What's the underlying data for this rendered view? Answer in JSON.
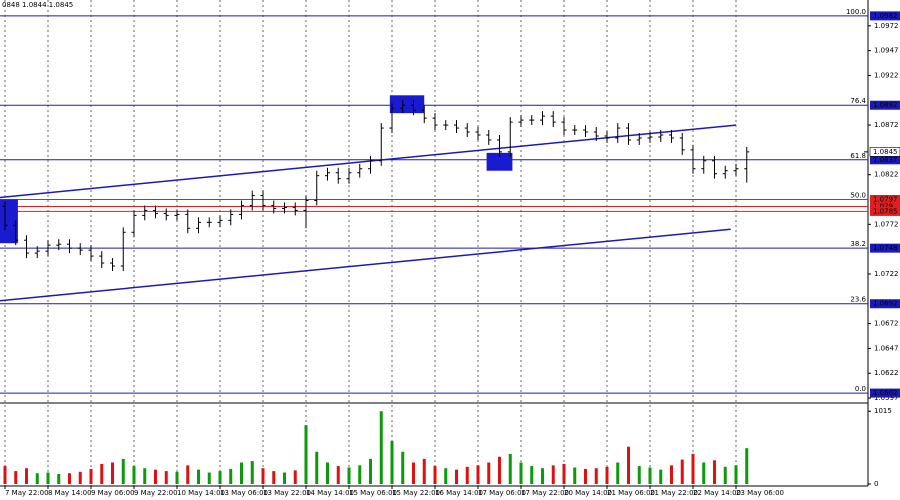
{
  "chart_data": {
    "type": "candlestick",
    "header": "0848 1.0844 1.0845",
    "categories": [
      "7 May 22:00",
      null,
      null,
      null,
      "8 May 14:00",
      null,
      null,
      null,
      "9 May 06:00",
      null,
      null,
      null,
      "9 May 22:00",
      null,
      null,
      null,
      "10 May 14:00",
      null,
      null,
      null,
      "13 May 06:00",
      null,
      null,
      null,
      "13 May 22:00",
      null,
      null,
      null,
      "14 May 14:00",
      null,
      null,
      null,
      "15 May 06:00",
      null,
      null,
      null,
      "15 May 22:00",
      null,
      null,
      null,
      "16 May 14:00",
      null,
      null,
      null,
      "17 May 06:00",
      null,
      null,
      null,
      "17 May 22:00",
      null,
      null,
      null,
      "20 May 14:00",
      null,
      null,
      null,
      "21 May 06:00",
      null,
      null,
      null,
      "21 May 22:00",
      null,
      null,
      null,
      "22 May 14:00",
      null,
      null,
      null,
      "23 May 06:00",
      null
    ],
    "open": [
      1.079,
      1.0771,
      1.0756,
      1.0743,
      1.0745,
      1.0751,
      1.0752,
      1.0748,
      1.0746,
      1.074,
      1.0733,
      1.073,
      1.0764,
      1.0781,
      1.0786,
      1.0783,
      1.0781,
      1.0782,
      1.0768,
      1.0774,
      1.0774,
      1.0776,
      1.0782,
      1.0791,
      1.0801,
      1.0791,
      1.0788,
      1.0789,
      1.0786,
      1.0796,
      1.0821,
      1.0824,
      1.0818,
      1.0824,
      1.0828,
      1.0836,
      1.0869,
      1.0889,
      1.0892,
      1.0887,
      1.0879,
      1.0872,
      1.0872,
      1.0869,
      1.0865,
      1.0862,
      1.0857,
      1.0845,
      1.0875,
      1.0877,
      1.0877,
      1.0881,
      1.0875,
      1.0867,
      1.0867,
      1.0865,
      1.0861,
      1.0859,
      1.0869,
      1.0857,
      1.0859,
      1.086,
      1.0862,
      1.0859,
      1.0847,
      1.0828,
      1.0836,
      1.0823,
      1.0826,
      1.0828
    ],
    "high": [
      1.0795,
      1.0776,
      1.0761,
      1.075,
      1.0756,
      1.0757,
      1.0757,
      1.0753,
      1.0751,
      1.0745,
      1.0738,
      1.0769,
      1.0786,
      1.0791,
      1.0791,
      1.0788,
      1.0787,
      1.0787,
      1.0779,
      1.0779,
      1.0781,
      1.0787,
      1.0796,
      1.0806,
      1.0806,
      1.0796,
      1.0794,
      1.0794,
      1.0801,
      1.0826,
      1.0829,
      1.0829,
      1.0829,
      1.0833,
      1.0841,
      1.0874,
      1.0894,
      1.0897,
      1.0897,
      1.0892,
      1.0884,
      1.0877,
      1.0877,
      1.0874,
      1.087,
      1.0867,
      1.0862,
      1.088,
      1.0882,
      1.0882,
      1.0886,
      1.0886,
      1.088,
      1.0872,
      1.0872,
      1.087,
      1.0866,
      1.0874,
      1.0874,
      1.0864,
      1.0865,
      1.0867,
      1.0867,
      1.0864,
      1.0852,
      1.0841,
      1.0841,
      1.0831,
      1.0833,
      1.085
    ],
    "low": [
      1.0766,
      1.0751,
      1.0738,
      1.0738,
      1.074,
      1.0746,
      1.0743,
      1.0741,
      1.0735,
      1.0728,
      1.0725,
      1.0725,
      1.0759,
      1.0776,
      1.0778,
      1.0776,
      1.0776,
      1.0763,
      1.0763,
      1.0769,
      1.0769,
      1.0771,
      1.0777,
      1.0786,
      1.0786,
      1.0783,
      1.0783,
      1.0781,
      1.0768,
      1.0791,
      1.0816,
      1.0813,
      1.0813,
      1.0819,
      1.0823,
      1.0831,
      1.0864,
      1.0884,
      1.0882,
      1.0874,
      1.0867,
      1.0867,
      1.0864,
      1.086,
      1.0857,
      1.0852,
      1.084,
      1.084,
      1.087,
      1.0872,
      1.0872,
      1.087,
      1.0862,
      1.0862,
      1.086,
      1.0856,
      1.0854,
      1.0854,
      1.0852,
      1.0852,
      1.0854,
      1.0855,
      1.0854,
      1.0842,
      1.0823,
      1.0823,
      1.0818,
      1.0818,
      1.0821,
      1.0814
    ],
    "close": [
      1.0771,
      1.0756,
      1.0743,
      1.0745,
      1.0751,
      1.0752,
      1.0748,
      1.0746,
      1.074,
      1.0733,
      1.073,
      1.0764,
      1.0781,
      1.0786,
      1.0783,
      1.0781,
      1.0782,
      1.0768,
      1.0774,
      1.0774,
      1.0776,
      1.0782,
      1.0791,
      1.0801,
      1.0791,
      1.0788,
      1.0789,
      1.0786,
      1.0796,
      1.0821,
      1.0824,
      1.0818,
      1.0824,
      1.0828,
      1.0836,
      1.0869,
      1.0889,
      1.0892,
      1.0887,
      1.0879,
      1.0872,
      1.0872,
      1.0869,
      1.0865,
      1.0862,
      1.0857,
      1.0845,
      1.0875,
      1.0877,
      1.0877,
      1.0881,
      1.0875,
      1.0867,
      1.0867,
      1.0865,
      1.0861,
      1.0859,
      1.0869,
      1.0857,
      1.0859,
      1.086,
      1.0862,
      1.0859,
      1.0847,
      1.0828,
      1.0836,
      1.0823,
      1.0826,
      1.0828,
      1.0845
    ],
    "color": "#000000",
    "ylim": [
      1.0592,
      1.0998
    ],
    "yticks": [
      1.0597,
      1.0622,
      1.0647,
      1.0672,
      1.0722,
      1.0772,
      1.0822,
      1.0872,
      1.0922,
      1.0947,
      1.0972
    ],
    "levels": [
      {
        "label": "100.0",
        "price": 1.0982,
        "color": "#1a1ab8"
      },
      {
        "label": "76.4",
        "price": 1.0892,
        "color": "#1a1ab8"
      },
      {
        "label": "61.8",
        "price": 1.0837,
        "color": "#1a1ab8"
      },
      {
        "label": "50.0",
        "price": 1.0797,
        "color": "#e02020"
      },
      {
        "price": 1.079,
        "color": "#e02020"
      },
      {
        "price": 1.0785,
        "color": "#e02020"
      },
      {
        "label": "38.2",
        "price": 1.0748,
        "color": "#1a1ab8"
      },
      {
        "label": "23.6",
        "price": 1.0692,
        "color": "#1a1ab8"
      },
      {
        "label": "0.0",
        "price": 1.0602,
        "color": "#1a1ab8"
      }
    ],
    "last_price": 1.0845,
    "trendlines": [
      {
        "x": [
          -0.5,
          68
        ],
        "y": [
          1.0799,
          1.0872
        ],
        "color": "#1a1ab8"
      },
      {
        "x": [
          -0.5,
          67.5
        ],
        "y": [
          1.0695,
          1.0767
        ],
        "color": "#1a1ab8"
      }
    ],
    "boxes": [
      {
        "x": [
          -0.5,
          1.2
        ],
        "y": [
          1.0753,
          1.0797
        ],
        "color": "#1a1ad0"
      },
      {
        "x": [
          35.8,
          39
        ],
        "y": [
          1.0884,
          1.0902
        ],
        "color": "#1a1ad0"
      },
      {
        "x": [
          44.8,
          47.2
        ],
        "y": [
          1.0826,
          1.0844
        ],
        "color": "#1a1ad0"
      }
    ],
    "volume": {
      "values": [
        250,
        180,
        220,
        150,
        160,
        140,
        150,
        170,
        210,
        280,
        300,
        350,
        250,
        220,
        200,
        180,
        170,
        260,
        200,
        160,
        180,
        210,
        300,
        320,
        220,
        180,
        160,
        190,
        820,
        450,
        300,
        250,
        230,
        260,
        350,
        1015,
        600,
        450,
        300,
        350,
        250,
        220,
        200,
        240,
        260,
        300,
        380,
        420,
        300,
        250,
        220,
        260,
        280,
        230,
        210,
        220,
        240,
        300,
        520,
        250,
        230,
        200,
        260,
        340,
        420,
        300,
        330,
        240,
        260,
        500
      ],
      "ylim": [
        0,
        1060
      ],
      "yticks": [
        0,
        1015
      ],
      "up_color": "#0a9a0a",
      "down_color": "#e01010"
    }
  }
}
